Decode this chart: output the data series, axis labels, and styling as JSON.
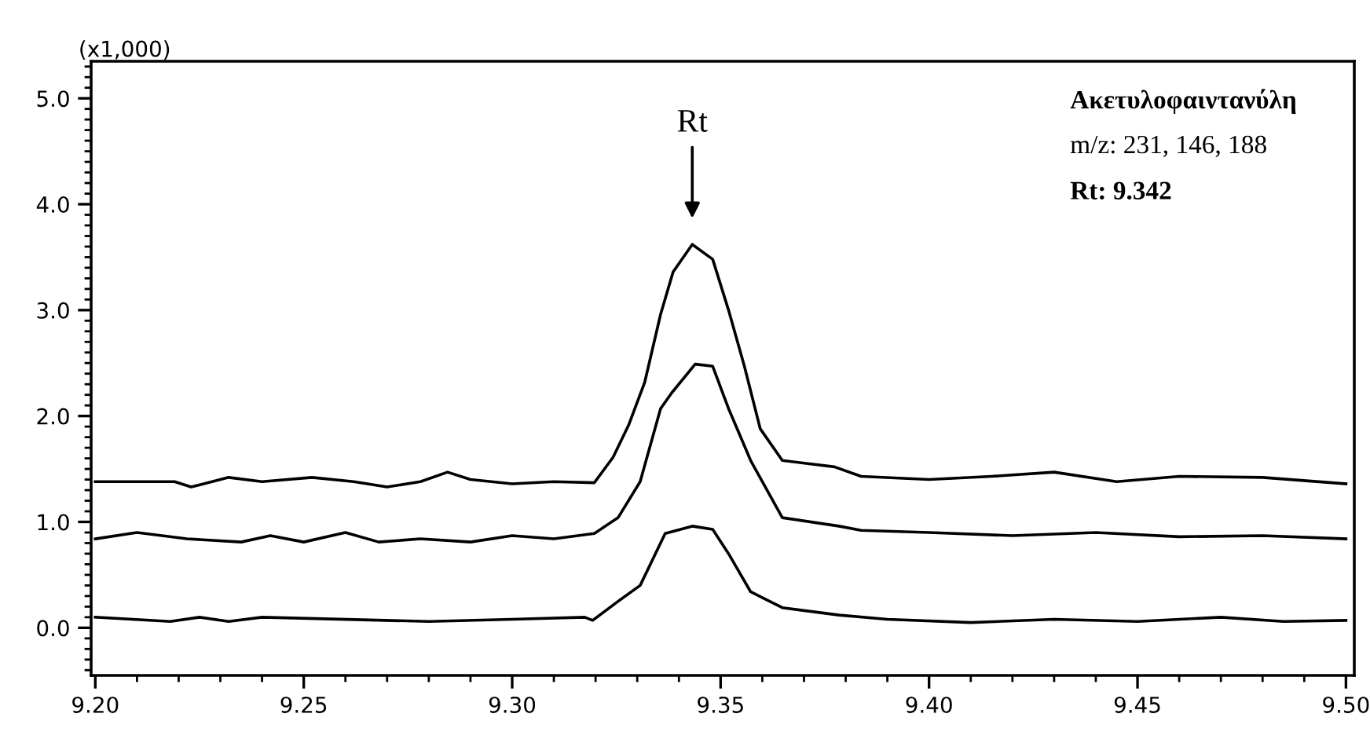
{
  "chart_data": {
    "type": "line",
    "ylabel": "(x1,000)",
    "xlim": [
      9.199,
      9.502
    ],
    "ylim": [
      -0.45,
      5.35
    ],
    "xticks": [
      {
        "value": 9.2,
        "label": "9.20"
      },
      {
        "value": 9.25,
        "label": "9.25"
      },
      {
        "value": 9.3,
        "label": "9.30"
      },
      {
        "value": 9.35,
        "label": "9.35"
      },
      {
        "value": 9.4,
        "label": "9.40"
      },
      {
        "value": 9.45,
        "label": "9.45"
      },
      {
        "value": 9.5,
        "label": "9.50"
      }
    ],
    "yticks": [
      {
        "value": 0,
        "label": "0.0"
      },
      {
        "value": 1,
        "label": "1.0"
      },
      {
        "value": 2,
        "label": "2.0"
      },
      {
        "value": 3,
        "label": "3.0"
      },
      {
        "value": 4,
        "label": "4.0"
      },
      {
        "value": 5,
        "label": "5.0"
      }
    ],
    "grid": false,
    "line_style": "solid",
    "marker": "none",
    "series": [
      {
        "color": "#000000",
        "x": [
          9.2,
          9.219,
          9.223,
          9.232,
          9.24,
          9.252,
          9.262,
          9.27,
          9.278,
          9.2845,
          9.29,
          9.3,
          9.31,
          9.3197,
          9.3242,
          9.328,
          9.3318,
          9.3356,
          9.3386,
          9.3432,
          9.3481,
          9.3519,
          9.3557,
          9.3595,
          9.3648,
          9.3773,
          9.3837,
          9.4,
          9.415,
          9.43,
          9.445,
          9.46,
          9.48,
          9.5
        ],
        "values": [
          1.38,
          1.38,
          1.33,
          1.42,
          1.38,
          1.42,
          1.38,
          1.33,
          1.38,
          1.47,
          1.4,
          1.36,
          1.38,
          1.37,
          1.61,
          1.92,
          2.32,
          2.96,
          3.36,
          3.62,
          3.48,
          3.0,
          2.47,
          1.88,
          1.58,
          1.52,
          1.43,
          1.4,
          1.43,
          1.47,
          1.38,
          1.43,
          1.42,
          1.36
        ]
      },
      {
        "color": "#000000",
        "x": [
          9.2,
          9.21,
          9.222,
          9.235,
          9.242,
          9.25,
          9.26,
          9.268,
          9.278,
          9.29,
          9.3,
          9.31,
          9.3197,
          9.3254,
          9.3307,
          9.3356,
          9.3383,
          9.3439,
          9.3481,
          9.3519,
          9.3572,
          9.3648,
          9.3784,
          9.3837,
          9.4,
          9.42,
          9.44,
          9.46,
          9.48,
          9.5
        ],
        "values": [
          0.84,
          0.9,
          0.84,
          0.81,
          0.87,
          0.81,
          0.9,
          0.81,
          0.84,
          0.81,
          0.87,
          0.84,
          0.89,
          1.04,
          1.38,
          2.07,
          2.22,
          2.49,
          2.47,
          2.07,
          1.58,
          1.04,
          0.96,
          0.92,
          0.9,
          0.87,
          0.9,
          0.86,
          0.87,
          0.84
        ]
      },
      {
        "color": "#000000",
        "x": [
          9.2,
          9.218,
          9.225,
          9.232,
          9.24,
          9.28,
          9.3,
          9.3174,
          9.3193,
          9.3254,
          9.3307,
          9.3367,
          9.3432,
          9.3481,
          9.3519,
          9.3572,
          9.3648,
          9.3784,
          9.39,
          9.41,
          9.43,
          9.45,
          9.47,
          9.485,
          9.5
        ],
        "values": [
          0.1,
          0.06,
          0.1,
          0.06,
          0.1,
          0.06,
          0.08,
          0.1,
          0.07,
          0.25,
          0.4,
          0.89,
          0.96,
          0.93,
          0.7,
          0.34,
          0.19,
          0.12,
          0.08,
          0.05,
          0.08,
          0.06,
          0.1,
          0.06,
          0.07
        ]
      }
    ],
    "annotations": [
      "Rt",
      "Ακετυλοφαιντανύλη",
      "m/z: 231, 146, 188",
      "Rt: 9.342"
    ]
  }
}
